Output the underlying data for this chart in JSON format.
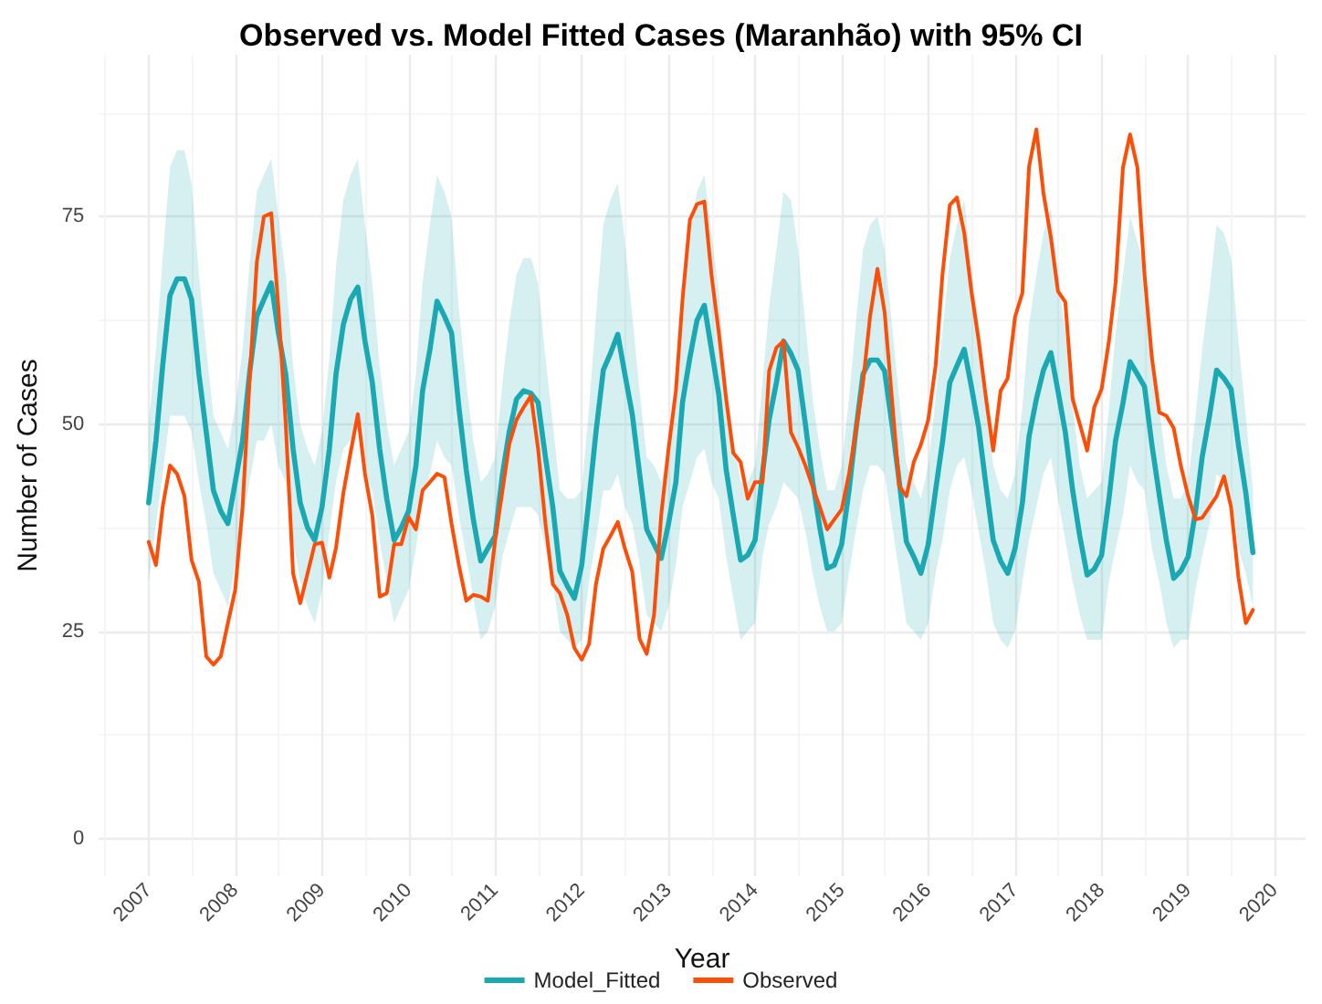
{
  "chart_data": {
    "type": "line",
    "title": "Observed vs. Model Fitted Cases (Maranhão) with 95% CI",
    "xlabel": "Year",
    "ylabel": "Number of Cases",
    "x": [
      "2007-01",
      "2007-02",
      "2007-03",
      "2007-04",
      "2007-05",
      "2007-06",
      "2007-07",
      "2007-08",
      "2007-09",
      "2007-10",
      "2007-11",
      "2007-12",
      "2008-01",
      "2008-02",
      "2008-03",
      "2008-04",
      "2008-05",
      "2008-06",
      "2008-07",
      "2008-08",
      "2008-09",
      "2008-10",
      "2008-11",
      "2008-12",
      "2009-01",
      "2009-02",
      "2009-03",
      "2009-04",
      "2009-05",
      "2009-06",
      "2009-07",
      "2009-08",
      "2009-09",
      "2009-10",
      "2009-11",
      "2009-12",
      "2010-01",
      "2010-02",
      "2010-03",
      "2010-04",
      "2010-05",
      "2010-06",
      "2010-07",
      "2010-08",
      "2010-09",
      "2010-10",
      "2010-11",
      "2010-12",
      "2011-01",
      "2011-02",
      "2011-03",
      "2011-04",
      "2011-05",
      "2011-06",
      "2011-07",
      "2011-08",
      "2011-09",
      "2011-10",
      "2011-11",
      "2011-12",
      "2012-01",
      "2012-02",
      "2012-03",
      "2012-04",
      "2012-05",
      "2012-06",
      "2012-07",
      "2012-08",
      "2012-09",
      "2012-10",
      "2012-11",
      "2012-12",
      "2013-01",
      "2013-02",
      "2013-03",
      "2013-04",
      "2013-05",
      "2013-06",
      "2013-07",
      "2013-08",
      "2013-09",
      "2013-10",
      "2013-11",
      "2013-12",
      "2014-01",
      "2014-02",
      "2014-03",
      "2014-04",
      "2014-05",
      "2014-06",
      "2014-07",
      "2014-08",
      "2014-09",
      "2014-10",
      "2014-11",
      "2014-12",
      "2015-01",
      "2015-02",
      "2015-03",
      "2015-04",
      "2015-05",
      "2015-06",
      "2015-07",
      "2015-08",
      "2015-09",
      "2015-10",
      "2015-11",
      "2015-12",
      "2016-01",
      "2016-02",
      "2016-03",
      "2016-04",
      "2016-05",
      "2016-06",
      "2016-07",
      "2016-08",
      "2016-09",
      "2016-10",
      "2016-11",
      "2016-12",
      "2017-01",
      "2017-02",
      "2017-03",
      "2017-04",
      "2017-05",
      "2017-06",
      "2017-07",
      "2017-08",
      "2017-09",
      "2017-10",
      "2017-11",
      "2017-12",
      "2018-01",
      "2018-02",
      "2018-03",
      "2018-04",
      "2018-05",
      "2018-06",
      "2018-07",
      "2018-08",
      "2018-09",
      "2018-10",
      "2018-11",
      "2018-12",
      "2019-01",
      "2019-02",
      "2019-03",
      "2019-04",
      "2019-05",
      "2019-06",
      "2019-07",
      "2019-08",
      "2019-09",
      "2019-10"
    ],
    "series": [
      {
        "name": "Model_Fitted",
        "color": "#1aa8b2",
        "values": [
          40.5,
          48,
          57,
          65.5,
          67.5,
          67.5,
          65,
          56,
          49,
          42,
          39.5,
          38,
          43,
          48,
          56,
          63,
          65,
          67,
          61,
          56,
          47,
          40.5,
          37.5,
          36,
          40,
          47,
          56,
          62,
          65,
          66.5,
          60,
          55,
          47,
          41,
          36,
          37.5,
          39.5,
          45,
          54,
          59,
          64.8,
          63,
          61,
          52,
          44.5,
          38.5,
          33.5,
          35,
          36.5,
          44,
          49,
          53,
          54,
          53.7,
          52.6,
          46,
          40,
          32.3,
          30.5,
          29,
          33,
          41,
          49,
          56.5,
          58.5,
          60.8,
          56,
          51.2,
          44,
          37.3,
          35.5,
          33.8,
          38,
          43,
          52.6,
          58,
          62.5,
          64.3,
          59,
          53.5,
          44.5,
          39,
          33.6,
          34.2,
          36,
          44,
          50.5,
          55,
          60,
          58.5,
          56.5,
          50,
          43,
          37.5,
          32.6,
          33,
          35.5,
          42,
          49,
          56,
          57.7,
          57.7,
          56.4,
          50,
          43,
          35.8,
          34,
          32,
          35.5,
          42,
          47.8,
          55,
          57,
          59,
          54.5,
          49.5,
          42.5,
          36,
          33.5,
          32,
          35,
          40.5,
          48.5,
          53,
          56.5,
          58.6,
          54,
          49,
          42,
          36.5,
          31.8,
          32.5,
          34.2,
          41,
          48,
          52.5,
          57.5,
          56,
          54.5,
          47.5,
          41.5,
          36,
          31.4,
          32.3,
          34,
          39.5,
          46,
          51,
          56.5,
          55.5,
          54.2,
          47.5,
          41.7,
          34.5
        ],
        "upper": [
          50,
          59,
          70,
          81,
          83,
          83,
          79,
          68,
          59,
          51,
          49,
          47,
          52,
          59,
          69,
          78,
          80,
          82,
          75,
          68,
          57,
          50,
          47,
          45,
          49,
          58,
          69,
          77,
          80,
          82,
          74,
          67,
          57,
          50,
          45,
          47,
          49,
          56,
          67,
          74,
          80,
          78,
          75,
          64,
          55,
          48,
          43,
          44,
          46,
          55,
          62,
          68,
          70,
          70,
          67,
          58,
          50,
          42,
          41,
          41,
          42,
          52,
          63,
          74,
          77,
          79,
          72,
          63,
          54,
          46,
          45,
          43,
          47,
          54,
          66,
          73,
          78,
          80,
          73,
          66,
          55,
          48,
          43,
          43,
          45,
          55,
          64,
          71,
          78,
          77,
          71,
          62,
          53,
          47,
          42,
          42,
          45,
          53,
          62,
          71,
          74,
          75,
          71,
          62,
          53,
          45,
          43,
          41,
          45,
          53,
          61,
          70,
          74,
          77,
          69,
          62,
          53,
          45,
          42,
          41,
          44,
          52,
          62,
          68,
          73,
          76,
          68,
          61,
          52,
          45,
          41,
          42,
          43,
          52,
          61,
          68,
          75,
          72,
          69,
          60,
          52,
          45,
          41,
          41,
          43,
          51,
          59,
          66,
          74,
          73,
          70,
          60,
          51,
          42
        ],
        "lower": [
          31,
          38,
          44,
          51,
          51,
          51,
          49,
          43,
          38,
          32,
          30,
          28,
          33,
          38,
          43,
          48,
          48,
          50,
          45,
          43,
          36,
          31,
          28,
          26,
          30,
          37,
          43,
          47,
          48,
          50,
          44,
          42,
          36,
          31,
          26,
          28,
          30,
          35,
          41,
          44,
          48,
          46,
          45,
          39,
          34,
          29,
          24,
          25,
          28,
          34,
          37,
          40,
          40,
          40,
          39,
          35,
          31,
          25,
          24,
          23,
          24,
          31,
          36,
          42,
          42,
          44,
          40,
          38,
          33,
          27,
          26,
          25,
          28,
          33,
          40,
          43,
          46,
          47,
          43,
          41,
          34,
          29,
          24,
          25,
          26,
          34,
          38,
          40,
          43,
          42,
          41,
          37,
          32,
          28,
          25,
          25,
          26,
          32,
          37,
          42,
          45,
          45,
          44,
          38,
          32,
          26,
          25,
          24,
          26,
          32,
          36,
          42,
          45,
          46,
          42,
          37,
          32,
          26,
          24,
          23,
          25,
          31,
          36,
          40,
          44,
          46,
          41,
          36,
          31,
          27,
          24,
          24,
          24,
          31,
          35,
          39,
          45,
          43,
          42,
          35,
          31,
          26,
          23,
          24,
          24,
          30,
          34,
          38,
          44,
          43,
          42,
          35,
          32,
          28
        ]
      },
      {
        "name": "Observed",
        "color": "#fc4e07",
        "values": [
          35.8,
          33,
          40,
          45,
          44,
          41.3,
          33.6,
          31,
          22,
          21,
          22,
          26,
          30,
          40,
          55,
          69.5,
          75,
          75.4,
          64,
          50,
          32,
          28.4,
          32,
          35.5,
          35.7,
          31.5,
          35.1,
          41.7,
          46.5,
          51.2,
          44,
          39,
          29.2,
          29.6,
          35.5,
          35.5,
          38.8,
          37.3,
          42,
          43,
          44,
          43.6,
          38,
          33,
          28.7,
          29.4,
          29.2,
          28.7,
          36,
          42,
          47.5,
          50.5,
          52,
          53.4,
          47,
          38,
          30.7,
          29.6,
          27,
          23,
          21.6,
          23.5,
          30.7,
          35,
          36.5,
          38.2,
          35,
          32.2,
          24.1,
          22.3,
          27,
          39,
          47,
          54,
          65,
          74.6,
          76.5,
          76.8,
          68,
          61,
          53,
          46.5,
          45.4,
          41,
          43,
          43,
          56.4,
          59.2,
          60,
          49,
          47.2,
          45,
          42.4,
          40,
          37.3,
          38.5,
          39.7,
          44,
          49,
          55,
          63,
          68.7,
          63.5,
          53,
          42.5,
          41.3,
          45.4,
          47.5,
          50.5,
          57,
          68,
          76.4,
          77.3,
          73,
          66,
          60,
          53,
          46.8,
          54,
          55.5,
          62.9,
          65.8,
          81,
          85.5,
          77.8,
          72.5,
          66,
          64.7,
          53,
          50,
          46.8,
          52,
          54.2,
          60,
          67,
          80.9,
          84.9,
          80.9,
          68,
          58,
          51.4,
          51,
          49.5,
          45,
          41.3,
          38.5,
          38.7,
          40,
          41.3,
          43.7,
          40,
          31.5,
          26,
          27.6
        ]
      }
    ],
    "xlim": [
      "2006-06-05",
      "2020-05-10"
    ],
    "xticks": [
      "2007",
      "2008",
      "2009",
      "2010",
      "2011",
      "2012",
      "2013",
      "2014",
      "2015",
      "2016",
      "2017",
      "2018",
      "2019",
      "2020"
    ],
    "ylim": [
      -4.5,
      94.5
    ],
    "yticks": [
      0,
      25,
      50,
      75
    ],
    "grid": true,
    "legend": "bottom",
    "marker": "none",
    "line_style": "solid"
  }
}
